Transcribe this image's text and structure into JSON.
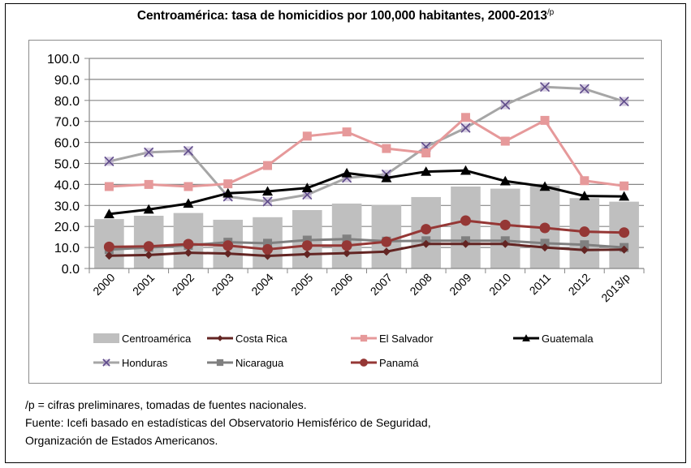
{
  "title": "Centroamérica: tasa de homicidios por 100,000 habitantes, 2000-2013",
  "title_superscript": "/p",
  "notes": [
    "/p = cifras preliminares, tomadas de fuentes nacionales.",
    "Fuente: Icefi basado en estadísticas del Observatorio Hemisférico de Seguridad,",
    "Organización de Estados Americanos."
  ],
  "chart_data": {
    "type": "bar",
    "title": "Centroamérica: tasa de homicidios por 100,000 habitantes, 2000-2013/p",
    "xlabel": "",
    "ylabel": "",
    "ylim": [
      0,
      100
    ],
    "yticks": [
      0,
      10,
      20,
      30,
      40,
      50,
      60,
      70,
      80,
      90,
      100
    ],
    "ytick_labels": [
      "0.0",
      "10.0",
      "20.0",
      "30.0",
      "40.0",
      "50.0",
      "60.0",
      "70.0",
      "80.0",
      "90.0",
      "100.0"
    ],
    "grid": true,
    "legend_position": "bottom",
    "categories": [
      "2000",
      "2001",
      "2002",
      "2003",
      "2004",
      "2005",
      "2006",
      "2007",
      "2008",
      "2009",
      "2010",
      "2011",
      "2012",
      "2013/p"
    ],
    "series": [
      {
        "name": "Centroamérica",
        "kind": "bar",
        "color": "#bfbfbf",
        "marker": "none",
        "values": [
          23.5,
          25.1,
          26.4,
          23.2,
          24.4,
          27.8,
          30.9,
          30.1,
          34.0,
          39.0,
          38.0,
          39.5,
          33.5,
          31.8
        ]
      },
      {
        "name": "Costa Rica",
        "kind": "line",
        "color": "#632523",
        "marker": "diamond",
        "values": [
          6.1,
          6.4,
          7.5,
          7.1,
          6.0,
          6.8,
          7.3,
          8.0,
          11.7,
          11.7,
          11.7,
          10.0,
          8.8,
          9.0
        ]
      },
      {
        "name": "El Salvador",
        "kind": "line",
        "color": "#e6999a",
        "marker": "square",
        "values": [
          39.0,
          40.0,
          39.0,
          40.3,
          49.0,
          63.0,
          65.0,
          57.1,
          55.0,
          71.9,
          60.6,
          70.5,
          41.8,
          39.3
        ]
      },
      {
        "name": "Guatemala",
        "kind": "line",
        "color": "#000000",
        "marker": "triangle",
        "values": [
          25.9,
          28.1,
          30.9,
          35.8,
          36.7,
          38.3,
          45.4,
          43.1,
          46.1,
          46.6,
          41.6,
          39.0,
          34.5,
          34.3
        ]
      },
      {
        "name": "Honduras",
        "kind": "line",
        "color": "#a6a6a6",
        "marker": "x",
        "values": [
          51.0,
          55.3,
          56.0,
          34.2,
          31.9,
          35.1,
          43.1,
          44.8,
          57.9,
          66.9,
          77.9,
          86.4,
          85.5,
          79.5
        ]
      },
      {
        "name": "Nicaragua",
        "kind": "line",
        "color": "#808080",
        "marker": "square",
        "values": [
          9.0,
          10.0,
          11.0,
          12.5,
          12.0,
          13.5,
          14.0,
          13.0,
          13.2,
          13.2,
          13.2,
          12.0,
          11.3,
          10.0
        ]
      },
      {
        "name": "Panamá",
        "kind": "line",
        "color": "#953735",
        "marker": "circle",
        "values": [
          10.3,
          10.5,
          11.6,
          10.9,
          9.1,
          10.9,
          10.9,
          12.7,
          18.7,
          22.8,
          20.7,
          19.3,
          17.5,
          17.1
        ]
      }
    ]
  }
}
